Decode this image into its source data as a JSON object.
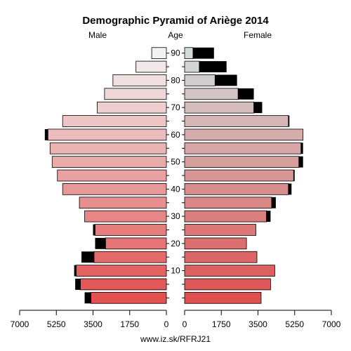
{
  "chart_data": {
    "type": "bar",
    "title": "Demographic Pyramid of Ariège 2014",
    "left_label": "Male",
    "center_label": "Age",
    "right_label": "Female",
    "source": "www.iz.sk/RFRJ21",
    "x_ticks_left": [
      "7000",
      "5250",
      "3500",
      "1750",
      "0"
    ],
    "x_ticks_right": [
      "0",
      "1750",
      "3500",
      "5250",
      "7000"
    ],
    "xlim": [
      0,
      7000
    ],
    "age_tick_labels": [
      "10",
      "20",
      "30",
      "40",
      "50",
      "60",
      "70",
      "80",
      "90"
    ],
    "age_groups": [
      "0-4",
      "5-9",
      "10-14",
      "15-19",
      "20-24",
      "25-29",
      "30-34",
      "35-39",
      "40-44",
      "45-49",
      "50-54",
      "55-59",
      "60-64",
      "65-69",
      "70-74",
      "75-79",
      "80-84",
      "85-89",
      "90+"
    ],
    "series": [
      {
        "name": "Male",
        "values": [
          3600,
          4100,
          4300,
          3450,
          2900,
          3400,
          3900,
          4150,
          4950,
          5200,
          5450,
          5550,
          5650,
          4950,
          3300,
          2950,
          2550,
          1450,
          700
        ],
        "surplus": [
          300,
          250,
          100,
          600,
          500,
          100,
          0,
          0,
          0,
          0,
          0,
          0,
          150,
          0,
          0,
          0,
          0,
          0,
          0
        ]
      },
      {
        "name": "Female",
        "values": [
          3650,
          4100,
          4300,
          3450,
          2950,
          3400,
          3900,
          4150,
          4950,
          5200,
          5450,
          5550,
          5650,
          4950,
          3300,
          2550,
          1450,
          700,
          400
        ],
        "surplus": [
          0,
          0,
          0,
          0,
          0,
          0,
          200,
          200,
          150,
          50,
          200,
          100,
          0,
          50,
          400,
          750,
          1050,
          1300,
          1000
        ]
      }
    ]
  }
}
